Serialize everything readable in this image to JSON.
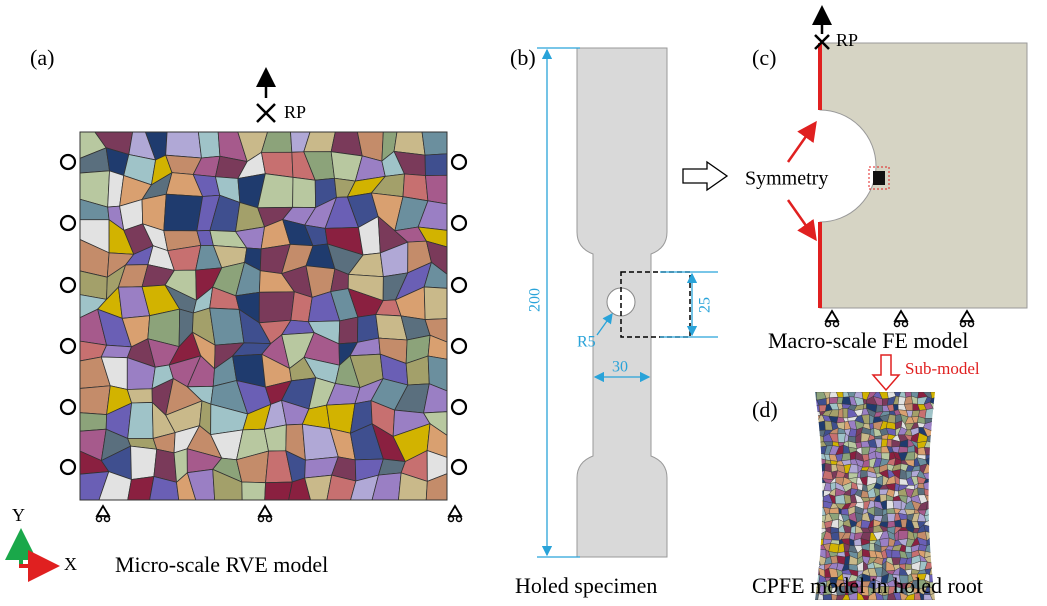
{
  "panel_a": {
    "label": "(a)",
    "rp": "RP",
    "axis_y": "Y",
    "axis_x": "X",
    "caption": "Micro-scale RVE model"
  },
  "panel_b": {
    "label": "(b)",
    "dim_length": "200",
    "dim_window": "25",
    "dim_radius": "R5",
    "dim_width": "30",
    "caption": "Holed specimen"
  },
  "panel_c": {
    "label": "(c)",
    "rp": "RP",
    "symmetry": "Symmetry",
    "caption": "Macro-scale FE model",
    "submodel": "Sub-model"
  },
  "panel_d": {
    "label": "(d)",
    "caption": "CPFE model in holed root"
  }
}
